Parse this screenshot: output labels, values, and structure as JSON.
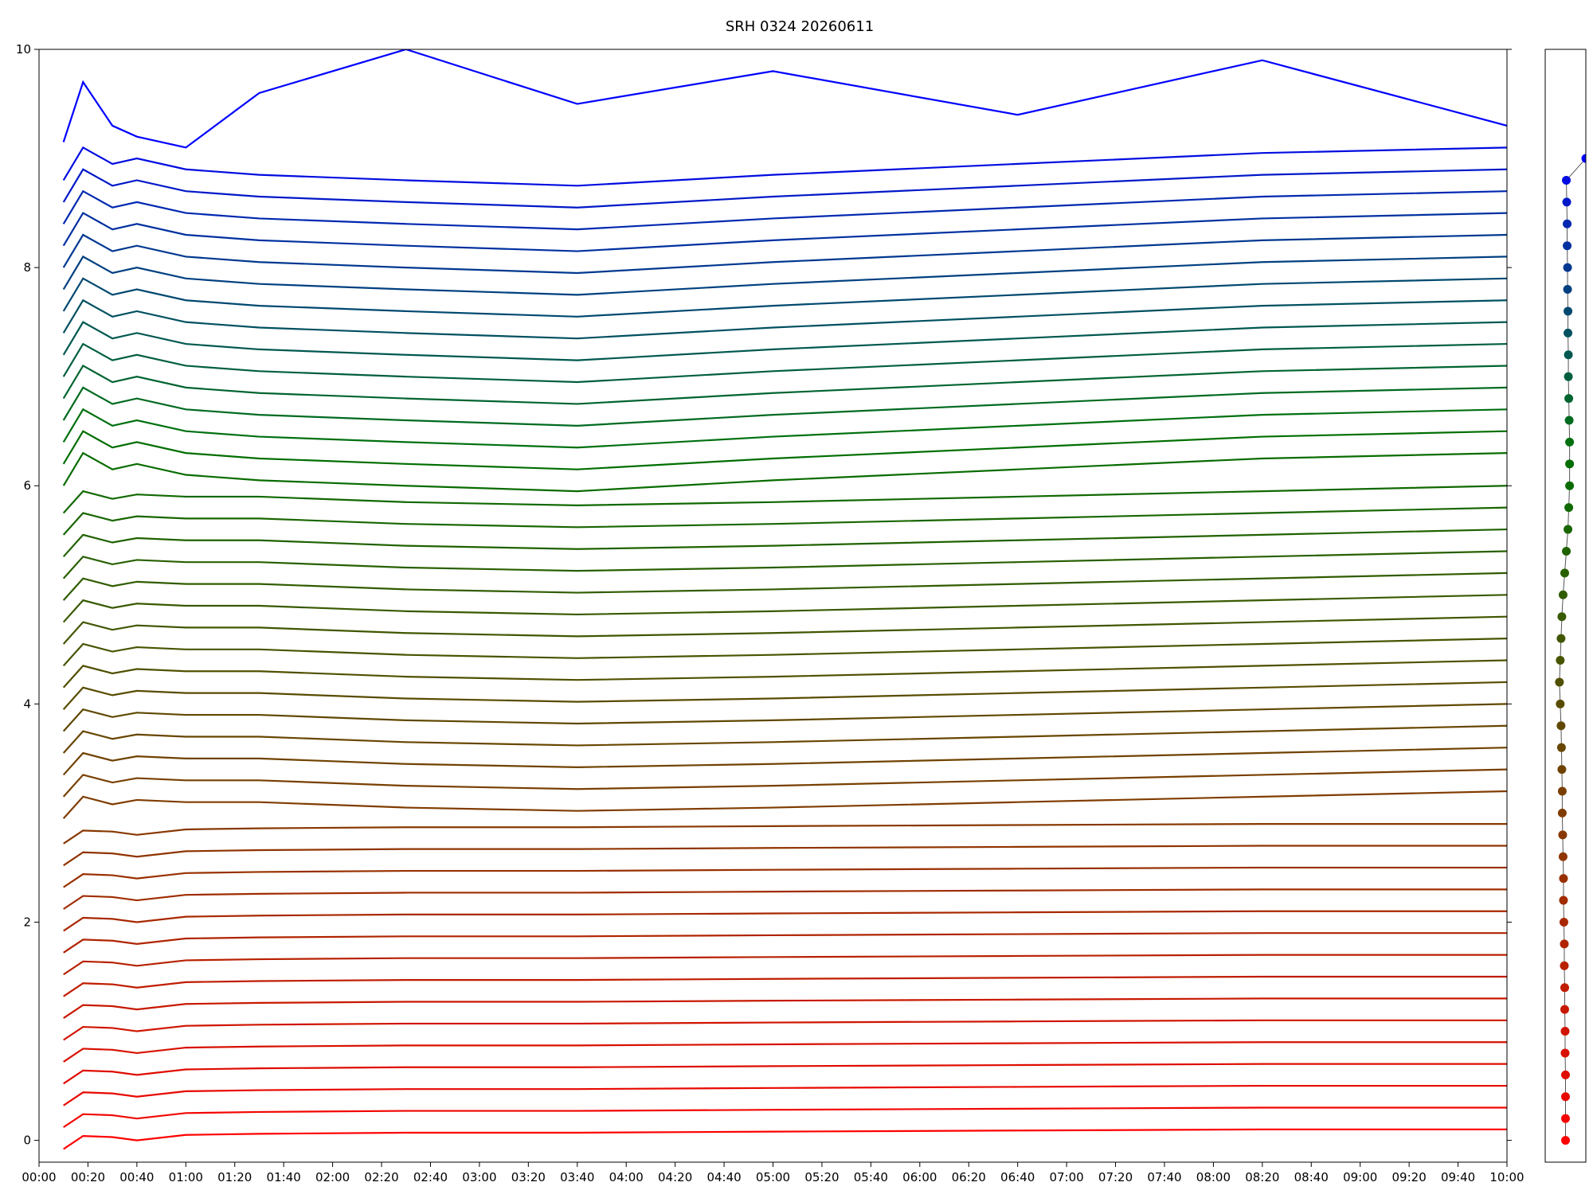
{
  "chart_data": [
    {
      "type": "line",
      "title": "SRH 0324 20260611",
      "x": [
        10,
        18,
        30,
        40,
        60,
        90,
        150,
        220,
        300,
        400,
        500,
        600
      ],
      "xlim": [
        0,
        600
      ],
      "ylim": [
        -0.2,
        10
      ],
      "yticks": [
        0,
        2,
        4,
        6,
        8,
        10
      ],
      "xticks": [
        {
          "value": 0,
          "label": "00:00"
        },
        {
          "value": 20,
          "label": "00:20"
        },
        {
          "value": 40,
          "label": "00:40"
        },
        {
          "value": 60,
          "label": "01:00"
        },
        {
          "value": 80,
          "label": "01:20"
        },
        {
          "value": 100,
          "label": "01:40"
        },
        {
          "value": 120,
          "label": "02:00"
        },
        {
          "value": 140,
          "label": "02:20"
        },
        {
          "value": 160,
          "label": "02:40"
        },
        {
          "value": 180,
          "label": "03:00"
        },
        {
          "value": 200,
          "label": "03:20"
        },
        {
          "value": 220,
          "label": "03:40"
        },
        {
          "value": 240,
          "label": "04:00"
        },
        {
          "value": 260,
          "label": "04:20"
        },
        {
          "value": 280,
          "label": "04:40"
        },
        {
          "value": 300,
          "label": "05:00"
        },
        {
          "value": 320,
          "label": "05:20"
        },
        {
          "value": 340,
          "label": "05:40"
        },
        {
          "value": 360,
          "label": "06:00"
        },
        {
          "value": 380,
          "label": "06:20"
        },
        {
          "value": 400,
          "label": "06:40"
        },
        {
          "value": 420,
          "label": "07:00"
        },
        {
          "value": 440,
          "label": "07:20"
        },
        {
          "value": 460,
          "label": "07:40"
        },
        {
          "value": 480,
          "label": "08:00"
        },
        {
          "value": 500,
          "label": "08:20"
        },
        {
          "value": 520,
          "label": "08:40"
        },
        {
          "value": 540,
          "label": "09:00"
        },
        {
          "value": 560,
          "label": "09:20"
        },
        {
          "value": 580,
          "label": "09:40"
        },
        {
          "value": 600,
          "label": "10:00"
        }
      ],
      "series": [
        {
          "color": "#ff0000",
          "values": [
            -0.08,
            0.04,
            0.03,
            0,
            0.05,
            0.06,
            0.07,
            0.07,
            0.08,
            0.09,
            0.1,
            0.1
          ]
        },
        {
          "color": "#f20500",
          "values": [
            0.12,
            0.24,
            0.23,
            0.2,
            0.25,
            0.26,
            0.27,
            0.27,
            0.28,
            0.29,
            0.3,
            0.3
          ]
        },
        {
          "color": "#e80800",
          "values": [
            0.32,
            0.44,
            0.43,
            0.4,
            0.45,
            0.46,
            0.47,
            0.47,
            0.48,
            0.49,
            0.5,
            0.5
          ]
        },
        {
          "color": "#df0c00",
          "values": [
            0.52,
            0.64,
            0.63,
            0.6,
            0.65,
            0.66,
            0.67,
            0.67,
            0.68,
            0.69,
            0.7,
            0.7
          ]
        },
        {
          "color": "#d81000",
          "values": [
            0.72,
            0.84,
            0.83,
            0.8,
            0.85,
            0.86,
            0.87,
            0.87,
            0.88,
            0.89,
            0.9,
            0.9
          ]
        },
        {
          "color": "#d01400",
          "values": [
            0.92,
            1.04,
            1.03,
            1,
            1.05,
            1.06,
            1.07,
            1.07,
            1.08,
            1.09,
            1.1,
            1.1
          ]
        },
        {
          "color": "#c81800",
          "values": [
            1.12,
            1.24,
            1.23,
            1.2,
            1.25,
            1.26,
            1.27,
            1.27,
            1.28,
            1.29,
            1.3,
            1.3
          ]
        },
        {
          "color": "#c01c00",
          "values": [
            1.32,
            1.44,
            1.43,
            1.4,
            1.45,
            1.46,
            1.47,
            1.47,
            1.48,
            1.49,
            1.5,
            1.5
          ]
        },
        {
          "color": "#b82000",
          "values": [
            1.52,
            1.64,
            1.63,
            1.6,
            1.65,
            1.66,
            1.67,
            1.67,
            1.68,
            1.69,
            1.7,
            1.7
          ]
        },
        {
          "color": "#b02400",
          "values": [
            1.72,
            1.84,
            1.83,
            1.8,
            1.85,
            1.86,
            1.87,
            1.87,
            1.88,
            1.89,
            1.9,
            1.9
          ]
        },
        {
          "color": "#a82800",
          "values": [
            1.92,
            2.04,
            2.03,
            2,
            2.05,
            2.06,
            2.07,
            2.07,
            2.08,
            2.09,
            2.1,
            2.1
          ]
        },
        {
          "color": "#a02c00",
          "values": [
            2.12,
            2.24,
            2.23,
            2.2,
            2.25,
            2.26,
            2.27,
            2.27,
            2.28,
            2.29,
            2.3,
            2.3
          ]
        },
        {
          "color": "#983000",
          "values": [
            2.32,
            2.44,
            2.43,
            2.4,
            2.45,
            2.46,
            2.47,
            2.47,
            2.48,
            2.49,
            2.5,
            2.5
          ]
        },
        {
          "color": "#903400",
          "values": [
            2.52,
            2.64,
            2.63,
            2.6,
            2.65,
            2.66,
            2.67,
            2.67,
            2.68,
            2.69,
            2.7,
            2.7
          ]
        },
        {
          "color": "#883800",
          "values": [
            2.72,
            2.84,
            2.83,
            2.8,
            2.85,
            2.86,
            2.87,
            2.87,
            2.88,
            2.89,
            2.9,
            2.9
          ]
        },
        {
          "color": "#803c00",
          "values": [
            2.95,
            3.15,
            3.08,
            3.12,
            3.1,
            3.1,
            3.05,
            3.02,
            3.05,
            3.1,
            3.15,
            3.2
          ]
        },
        {
          "color": "#783f00",
          "values": [
            3.15,
            3.35,
            3.28,
            3.32,
            3.3,
            3.3,
            3.25,
            3.22,
            3.25,
            3.3,
            3.35,
            3.4
          ]
        },
        {
          "color": "#704200",
          "values": [
            3.35,
            3.55,
            3.48,
            3.52,
            3.5,
            3.5,
            3.45,
            3.42,
            3.45,
            3.5,
            3.55,
            3.6
          ]
        },
        {
          "color": "#684600",
          "values": [
            3.55,
            3.75,
            3.68,
            3.72,
            3.7,
            3.7,
            3.65,
            3.62,
            3.65,
            3.7,
            3.75,
            3.8
          ]
        },
        {
          "color": "#604800",
          "values": [
            3.75,
            3.95,
            3.88,
            3.92,
            3.9,
            3.9,
            3.85,
            3.82,
            3.85,
            3.9,
            3.95,
            4
          ]
        },
        {
          "color": "#584c00",
          "values": [
            3.95,
            4.15,
            4.08,
            4.12,
            4.1,
            4.1,
            4.05,
            4.02,
            4.05,
            4.1,
            4.15,
            4.2
          ]
        },
        {
          "color": "#505000",
          "values": [
            4.15,
            4.35,
            4.28,
            4.32,
            4.3,
            4.3,
            4.25,
            4.22,
            4.25,
            4.3,
            4.35,
            4.4
          ]
        },
        {
          "color": "#485400",
          "values": [
            4.35,
            4.55,
            4.48,
            4.52,
            4.5,
            4.5,
            4.45,
            4.42,
            4.45,
            4.5,
            4.55,
            4.6
          ]
        },
        {
          "color": "#405600",
          "values": [
            4.55,
            4.75,
            4.68,
            4.72,
            4.7,
            4.7,
            4.65,
            4.62,
            4.65,
            4.7,
            4.75,
            4.8
          ]
        },
        {
          "color": "#385a00",
          "values": [
            4.75,
            4.95,
            4.88,
            4.92,
            4.9,
            4.9,
            4.85,
            4.82,
            4.85,
            4.9,
            4.95,
            5
          ]
        },
        {
          "color": "#305c00",
          "values": [
            4.95,
            5.15,
            5.08,
            5.12,
            5.1,
            5.1,
            5.05,
            5.02,
            5.05,
            5.1,
            5.15,
            5.2
          ]
        },
        {
          "color": "#286000",
          "values": [
            5.15,
            5.35,
            5.28,
            5.32,
            5.3,
            5.3,
            5.25,
            5.22,
            5.25,
            5.3,
            5.35,
            5.4
          ]
        },
        {
          "color": "#206200",
          "values": [
            5.35,
            5.55,
            5.48,
            5.52,
            5.5,
            5.5,
            5.45,
            5.42,
            5.45,
            5.5,
            5.55,
            5.6
          ]
        },
        {
          "color": "#186600",
          "values": [
            5.55,
            5.75,
            5.68,
            5.72,
            5.7,
            5.7,
            5.65,
            5.62,
            5.65,
            5.7,
            5.75,
            5.8
          ]
        },
        {
          "color": "#106800",
          "values": [
            5.75,
            5.95,
            5.88,
            5.92,
            5.9,
            5.9,
            5.85,
            5.82,
            5.85,
            5.9,
            5.95,
            6
          ]
        },
        {
          "color": "#086c00",
          "values": [
            6,
            6.3,
            6.15,
            6.2,
            6.1,
            6.05,
            6,
            5.95,
            6.05,
            6.15,
            6.25,
            6.3
          ]
        },
        {
          "color": "#006e00",
          "values": [
            6.2,
            6.5,
            6.35,
            6.4,
            6.3,
            6.25,
            6.2,
            6.15,
            6.25,
            6.35,
            6.45,
            6.5
          ]
        },
        {
          "color": "#007010",
          "values": [
            6.4,
            6.7,
            6.55,
            6.6,
            6.5,
            6.45,
            6.4,
            6.35,
            6.45,
            6.55,
            6.65,
            6.7
          ]
        },
        {
          "color": "#006a20",
          "values": [
            6.6,
            6.9,
            6.75,
            6.8,
            6.7,
            6.65,
            6.6,
            6.55,
            6.65,
            6.75,
            6.85,
            6.9
          ]
        },
        {
          "color": "#006430",
          "values": [
            6.8,
            7.1,
            6.95,
            7,
            6.9,
            6.85,
            6.8,
            6.75,
            6.85,
            6.95,
            7.05,
            7.1
          ]
        },
        {
          "color": "#005e40",
          "values": [
            7,
            7.3,
            7.15,
            7.2,
            7.1,
            7.05,
            7,
            6.95,
            7.05,
            7.15,
            7.25,
            7.3
          ]
        },
        {
          "color": "#005850",
          "values": [
            7.2,
            7.5,
            7.35,
            7.4,
            7.3,
            7.25,
            7.2,
            7.15,
            7.25,
            7.35,
            7.45,
            7.5
          ]
        },
        {
          "color": "#005060",
          "values": [
            7.4,
            7.7,
            7.55,
            7.6,
            7.5,
            7.45,
            7.4,
            7.35,
            7.45,
            7.55,
            7.65,
            7.7
          ]
        },
        {
          "color": "#004870",
          "values": [
            7.6,
            7.9,
            7.75,
            7.8,
            7.7,
            7.65,
            7.6,
            7.55,
            7.65,
            7.75,
            7.85,
            7.9
          ]
        },
        {
          "color": "#004080",
          "values": [
            7.8,
            8.1,
            7.95,
            8,
            7.9,
            7.85,
            7.8,
            7.75,
            7.85,
            7.95,
            8.05,
            8.1
          ]
        },
        {
          "color": "#003890",
          "values": [
            8,
            8.3,
            8.15,
            8.2,
            8.1,
            8.05,
            8,
            7.95,
            8.05,
            8.15,
            8.25,
            8.3
          ]
        },
        {
          "color": "#0030a0",
          "values": [
            8.2,
            8.5,
            8.35,
            8.4,
            8.3,
            8.25,
            8.2,
            8.15,
            8.25,
            8.35,
            8.45,
            8.5
          ]
        },
        {
          "color": "#0028b0",
          "values": [
            8.4,
            8.7,
            8.55,
            8.6,
            8.5,
            8.45,
            8.4,
            8.35,
            8.45,
            8.55,
            8.65,
            8.7
          ]
        },
        {
          "color": "#0018c8",
          "values": [
            8.6,
            8.9,
            8.75,
            8.8,
            8.7,
            8.65,
            8.6,
            8.55,
            8.65,
            8.75,
            8.85,
            8.9
          ]
        },
        {
          "color": "#000ce0",
          "values": [
            8.8,
            9.1,
            8.95,
            9,
            8.9,
            8.85,
            8.8,
            8.75,
            8.85,
            8.95,
            9.05,
            9.1
          ]
        },
        {
          "color": "#0000ff",
          "values": [
            9.15,
            9.7,
            9.3,
            9.2,
            9.1,
            9.6,
            10,
            9.5,
            9.8,
            9.4,
            9.9,
            9.3
          ]
        }
      ]
    },
    {
      "type": "scatter",
      "xlim": [
        0,
        1
      ],
      "ylim": [
        -0.2,
        10
      ],
      "line_color": "#555555",
      "x": [
        0.5,
        0.5,
        0.5,
        0.5,
        0.49,
        0.49,
        0.48,
        0.48,
        0.47,
        0.47,
        0.46,
        0.45,
        0.45,
        0.44,
        0.43,
        0.42,
        0.42,
        0.41,
        0.4,
        0.39,
        0.37,
        0.35,
        0.37,
        0.39,
        0.41,
        0.44,
        0.48,
        0.52,
        0.56,
        0.58,
        0.6,
        0.6,
        0.6,
        0.59,
        0.58,
        0.57,
        0.57,
        0.56,
        0.56,
        0.55,
        0.55,
        0.54,
        0.54,
        0.53,
        0.52,
        1
      ],
      "y": [
        0,
        0.2,
        0.4,
        0.6,
        0.8,
        1,
        1.2,
        1.4,
        1.6,
        1.8,
        2,
        2.2,
        2.4,
        2.6,
        2.8,
        3,
        3.2,
        3.4,
        3.6,
        3.8,
        4,
        4.2,
        4.4,
        4.6,
        4.8,
        5,
        5.2,
        5.4,
        5.6,
        5.8,
        6,
        6.2,
        6.4,
        6.6,
        6.8,
        7,
        7.2,
        7.4,
        7.6,
        7.8,
        8,
        8.2,
        8.4,
        8.6,
        8.8,
        9
      ]
    }
  ]
}
